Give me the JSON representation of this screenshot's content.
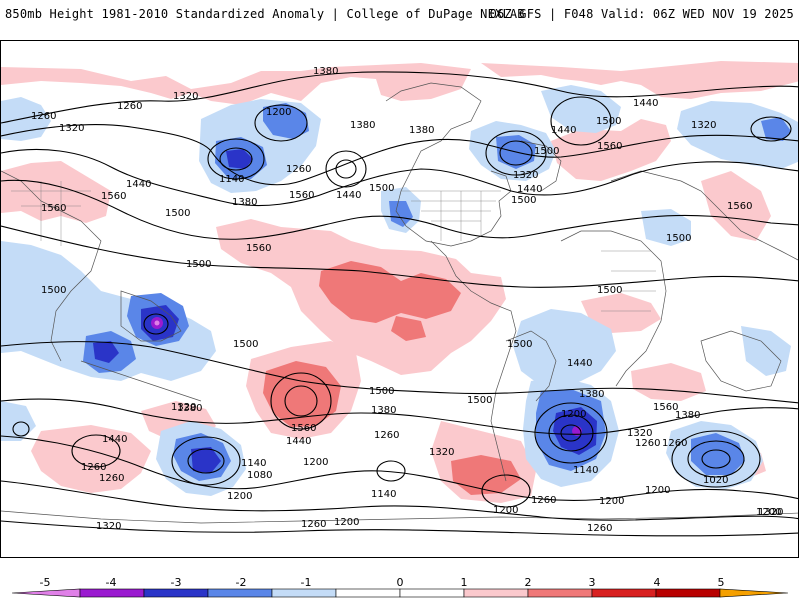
{
  "header": {
    "title": "850mb Height 1981-2010 Standardized Anomaly | College of DuPage NEXLAB",
    "run_info": "06Z GFS | F048 Valid: 06Z WED NOV 19 2025"
  },
  "colors": {
    "neg5": "#e080e8",
    "neg4": "#9a1ad0",
    "neg3": "#2a34c8",
    "neg2": "#5a86e8",
    "neg1": "#c4dcf7",
    "pos1": "#fbc9cd",
    "pos2": "#ef7878",
    "pos3": "#d82020",
    "pos4": "#b80000",
    "pos5": "#f5a000"
  },
  "colorbar": {
    "ticks": [
      "-5",
      "-4",
      "-3",
      "-2",
      "-1",
      "0",
      "1",
      "2",
      "3",
      "4",
      "5"
    ]
  },
  "contour_labels": [
    "1380",
    "1320",
    "1260",
    "1260",
    "1320",
    "1200",
    "1440",
    "1380",
    "1380",
    "1500",
    "1440",
    "1500",
    "1320",
    "1320",
    "1560",
    "1140",
    "1380",
    "1260",
    "1560",
    "1440",
    "1500",
    "1440",
    "1500",
    "1560",
    "1500",
    "1560",
    "1440",
    "1500",
    "1560",
    "1500",
    "1500",
    "1500",
    "1500",
    "1500",
    "1500",
    "1560",
    "1440",
    "1380",
    "1380",
    "1320",
    "1440",
    "1380",
    "1320",
    "1200",
    "1260",
    "1560",
    "1500",
    "1380",
    "1260",
    "1560",
    "1440",
    "1260",
    "1200",
    "1320",
    "1260",
    "1140",
    "1080",
    "1200",
    "1260",
    "1140",
    "1260",
    "1200",
    "1140",
    "1020",
    "1200",
    "1320",
    "1260",
    "1200",
    "1200",
    "1200",
    "1260",
    "1320"
  ]
}
